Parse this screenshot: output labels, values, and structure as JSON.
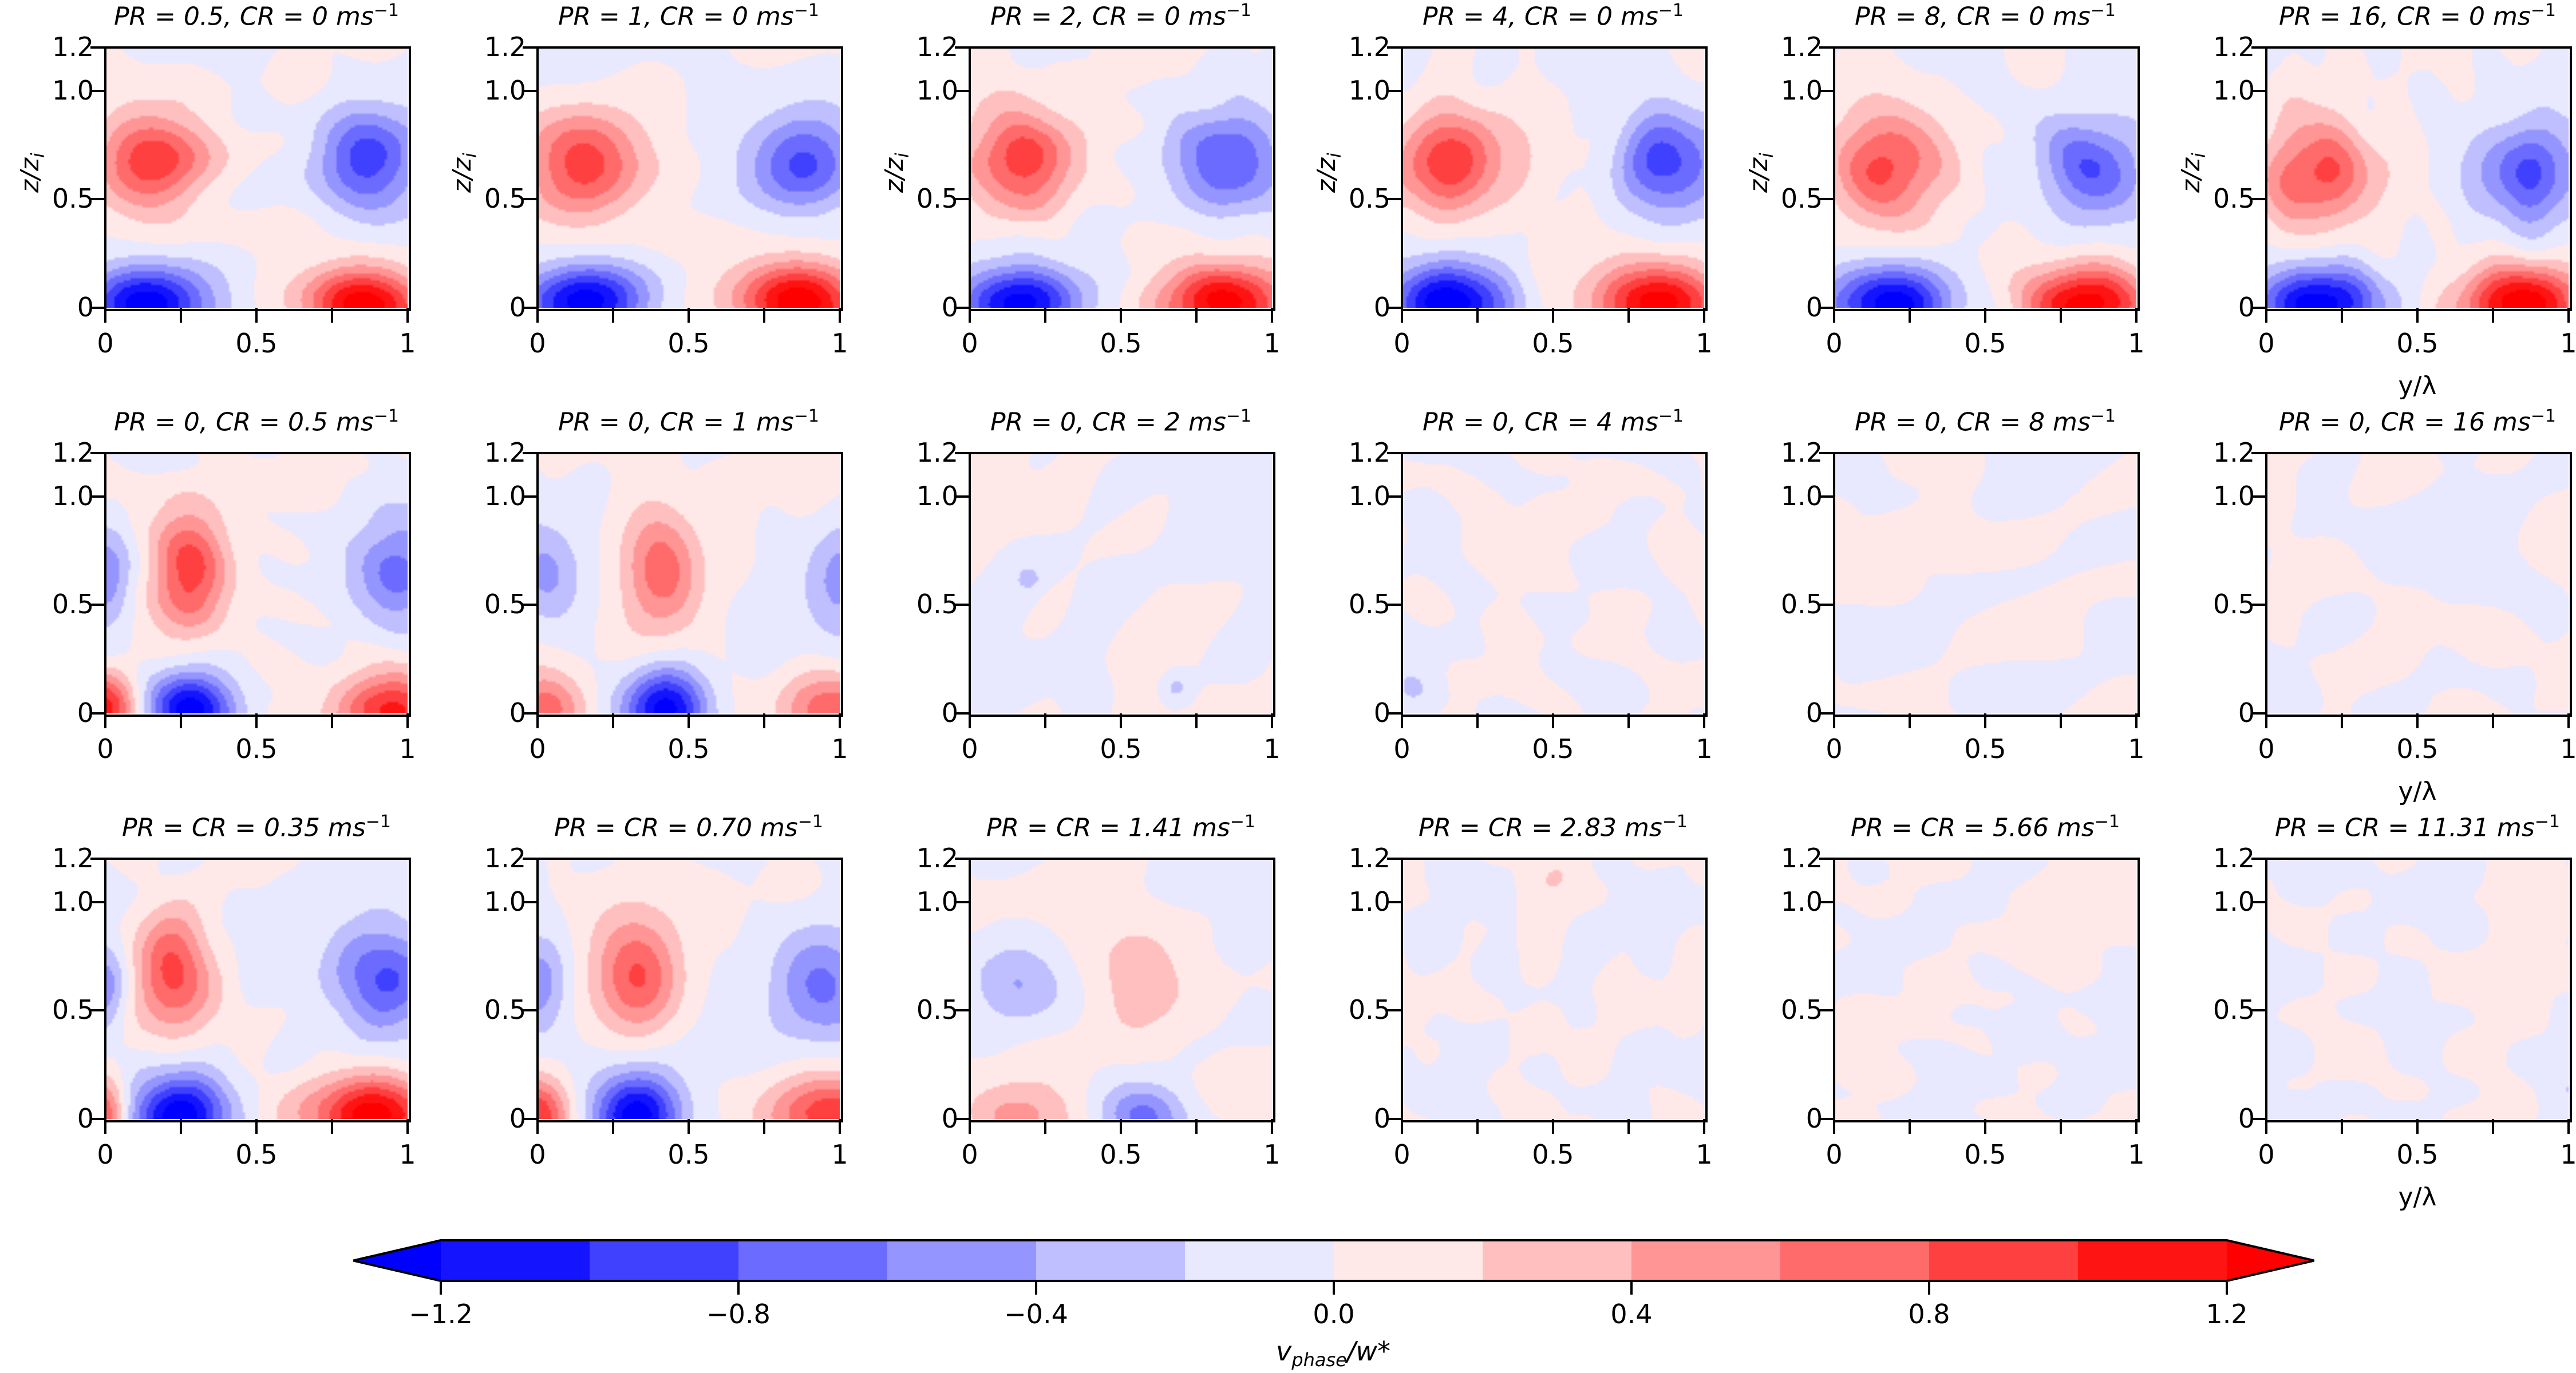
{
  "chart_data": {
    "type": "heatmap",
    "subtype": "filled-contour-grid",
    "rows": 3,
    "cols": 6,
    "xlabel": "y/λ",
    "ylabel": "z/z_i",
    "xlim": [
      0,
      1
    ],
    "ylim": [
      0,
      1.2
    ],
    "xticks": [
      "0",
      "0.5",
      "1"
    ],
    "xminor_ticks": [
      0.25,
      0.75
    ],
    "yticks": [
      "0",
      "0.5",
      "1.0",
      "1.2"
    ],
    "ytick_values": [
      0,
      0.5,
      1.0,
      1.2
    ],
    "colormap": "bwr",
    "colorbar": {
      "label_main": "v",
      "label_sub": "phase",
      "label_tail": "/w*",
      "levels": [
        -1.2,
        -1.0,
        -0.8,
        -0.6,
        -0.4,
        -0.2,
        0.0,
        0.2,
        0.4,
        0.6,
        0.8,
        1.0,
        1.2
      ],
      "ticks": [
        "−1.2",
        "−0.8",
        "−0.4",
        "0.0",
        "0.4",
        "0.8",
        "1.2"
      ],
      "tick_values": [
        -1.2,
        -0.8,
        -0.4,
        0.0,
        0.4,
        0.8,
        1.2
      ],
      "extend": "both",
      "colors": [
        "#0000ff",
        "#1414ff",
        "#4040ff",
        "#6b6bff",
        "#9595ff",
        "#bfbfff",
        "#e8e8ff",
        "#ffe8e8",
        "#ffbfbf",
        "#ff9595",
        "#ff6b6b",
        "#ff4040",
        "#ff1414",
        "#ff0000"
      ],
      "placement": "bottom"
    },
    "panels": [
      {
        "pr": "0.5",
        "cr": "0",
        "title_pre": "PR = 0.5, CR = 0 ms",
        "noise": 0.05,
        "seed": 1,
        "blobs": [
          [
            0.15,
            0.68,
            0.95,
            0.13,
            0.17
          ],
          [
            0.88,
            0.68,
            -0.9,
            0.12,
            0.17
          ],
          [
            0.15,
            0.02,
            -1.35,
            0.14,
            0.12
          ],
          [
            0.85,
            0.02,
            1.35,
            0.14,
            0.12
          ]
        ]
      },
      {
        "pr": "1",
        "cr": "0",
        "title_pre": "PR = 1, CR = 0 ms",
        "noise": 0.05,
        "seed": 2,
        "blobs": [
          [
            0.16,
            0.67,
            0.95,
            0.13,
            0.17
          ],
          [
            0.88,
            0.68,
            -0.85,
            0.12,
            0.17
          ],
          [
            0.16,
            0.02,
            -1.35,
            0.14,
            0.12
          ],
          [
            0.86,
            0.02,
            1.35,
            0.14,
            0.12
          ]
        ]
      },
      {
        "pr": "2",
        "cr": "0",
        "title_pre": "PR = 2, CR = 0 ms",
        "noise": 0.05,
        "seed": 3,
        "blobs": [
          [
            0.18,
            0.67,
            0.9,
            0.13,
            0.17
          ],
          [
            0.85,
            0.67,
            -0.8,
            0.13,
            0.17
          ],
          [
            0.17,
            0.02,
            -1.3,
            0.14,
            0.12
          ],
          [
            0.84,
            0.02,
            1.3,
            0.14,
            0.12
          ]
        ]
      },
      {
        "pr": "4",
        "cr": "0",
        "title_pre": "PR = 4, CR = 0 ms",
        "noise": 0.05,
        "seed": 4,
        "blobs": [
          [
            0.16,
            0.67,
            0.95,
            0.13,
            0.17
          ],
          [
            0.88,
            0.68,
            -0.9,
            0.12,
            0.17
          ],
          [
            0.16,
            0.02,
            -1.35,
            0.14,
            0.12
          ],
          [
            0.86,
            0.02,
            1.35,
            0.14,
            0.12
          ]
        ]
      },
      {
        "pr": "8",
        "cr": "0",
        "title_pre": "PR = 8, CR = 0 ms",
        "noise": 0.05,
        "seed": 5,
        "blobs": [
          [
            0.18,
            0.66,
            0.85,
            0.13,
            0.17
          ],
          [
            0.85,
            0.66,
            -0.8,
            0.13,
            0.17
          ],
          [
            0.18,
            0.02,
            -1.3,
            0.14,
            0.12
          ],
          [
            0.84,
            0.02,
            1.3,
            0.14,
            0.12
          ]
        ]
      },
      {
        "pr": "16",
        "cr": "0",
        "title_pre": "PR = 16, CR = 0 ms",
        "noise": 0.05,
        "seed": 6,
        "blobs": [
          [
            0.18,
            0.62,
            0.85,
            0.13,
            0.17
          ],
          [
            0.86,
            0.62,
            -0.85,
            0.12,
            0.17
          ],
          [
            0.17,
            0.02,
            -1.35,
            0.14,
            0.12
          ],
          [
            0.85,
            0.02,
            1.35,
            0.14,
            0.12
          ]
        ]
      },
      {
        "pr": "0",
        "cr": "0.5",
        "title_pre": "PR = 0, CR = 0.5 ms",
        "noise": 0.05,
        "seed": 7,
        "blobs": [
          [
            0.28,
            0.65,
            0.9,
            0.09,
            0.2
          ],
          [
            0.0,
            0.62,
            -0.55,
            0.06,
            0.16
          ],
          [
            0.97,
            0.65,
            -0.7,
            0.1,
            0.18
          ],
          [
            0.28,
            0.02,
            -1.35,
            0.1,
            0.13
          ],
          [
            0.0,
            0.02,
            1.1,
            0.07,
            0.12
          ],
          [
            0.95,
            0.02,
            1.1,
            0.14,
            0.12
          ]
        ]
      },
      {
        "pr": "0",
        "cr": "1",
        "title_pre": "PR = 0, CR = 1 ms",
        "noise": 0.05,
        "seed": 8,
        "blobs": [
          [
            0.42,
            0.65,
            0.75,
            0.09,
            0.2
          ],
          [
            0.03,
            0.65,
            -0.55,
            0.08,
            0.18
          ],
          [
            1.0,
            0.65,
            -0.5,
            0.08,
            0.18
          ],
          [
            0.42,
            0.02,
            -1.3,
            0.1,
            0.13
          ],
          [
            0.03,
            0.02,
            0.75,
            0.1,
            0.12
          ],
          [
            1.0,
            0.02,
            0.75,
            0.14,
            0.12
          ]
        ]
      },
      {
        "pr": "0",
        "cr": "2",
        "title_pre": "PR = 0, CR = 2 ms",
        "noise": 0.09,
        "seed": 9,
        "blobs": [
          [
            0.68,
            0.12,
            -0.3,
            0.04,
            0.06
          ],
          [
            0.2,
            0.62,
            -0.2,
            0.02,
            0.03
          ],
          [
            0.6,
            0.75,
            0.05,
            0.15,
            0.2
          ]
        ]
      },
      {
        "pr": "0",
        "cr": "4",
        "title_pre": "PR = 0, CR = 4 ms",
        "noise": 0.09,
        "seed": 10,
        "blobs": []
      },
      {
        "pr": "0",
        "cr": "8",
        "title_pre": "PR = 0, CR = 8 ms",
        "noise": 0.09,
        "seed": 11,
        "blobs": []
      },
      {
        "pr": "0",
        "cr": "16",
        "title_pre": "PR = 0, CR = 16 ms",
        "noise": 0.09,
        "seed": 12,
        "blobs": []
      },
      {
        "pr": "0.35",
        "cr": "0.35",
        "title_pre": "PR = CR = 0.35 ms",
        "noise": 0.05,
        "seed": 13,
        "blobs": [
          [
            0.22,
            0.66,
            0.95,
            0.09,
            0.18
          ],
          [
            0.0,
            0.62,
            -0.5,
            0.05,
            0.15
          ],
          [
            0.92,
            0.64,
            -0.85,
            0.12,
            0.17
          ],
          [
            0.24,
            0.02,
            -1.35,
            0.11,
            0.13
          ],
          [
            0.0,
            0.02,
            0.9,
            0.05,
            0.12
          ],
          [
            0.88,
            0.02,
            1.35,
            0.14,
            0.12
          ]
        ]
      },
      {
        "pr": "0.70",
        "cr": "0.70",
        "title_pre": "PR = CR = 0.70 ms",
        "noise": 0.05,
        "seed": 14,
        "blobs": [
          [
            0.33,
            0.66,
            0.85,
            0.1,
            0.19
          ],
          [
            0.0,
            0.63,
            -0.55,
            0.07,
            0.17
          ],
          [
            0.95,
            0.62,
            -0.65,
            0.12,
            0.18
          ],
          [
            0.33,
            0.02,
            -1.35,
            0.1,
            0.13
          ],
          [
            0.0,
            0.02,
            0.95,
            0.07,
            0.12
          ],
          [
            0.98,
            0.02,
            1.0,
            0.15,
            0.12
          ]
        ]
      },
      {
        "pr": "1.41",
        "cr": "1.41",
        "title_pre": "PR = CR = 1.41 ms",
        "noise": 0.07,
        "seed": 15,
        "blobs": [
          [
            0.55,
            0.65,
            0.35,
            0.12,
            0.18
          ],
          [
            0.15,
            0.62,
            -0.35,
            0.1,
            0.12
          ],
          [
            0.58,
            0.02,
            -0.7,
            0.1,
            0.1
          ],
          [
            0.15,
            0.02,
            0.45,
            0.13,
            0.1
          ]
        ]
      },
      {
        "pr": "2.83",
        "cr": "2.83",
        "title_pre": "PR = CR = 2.83 ms",
        "noise": 0.08,
        "seed": 16,
        "blobs": []
      },
      {
        "pr": "5.66",
        "cr": "5.66",
        "title_pre": "PR = CR = 5.66 ms",
        "noise": 0.08,
        "seed": 17,
        "blobs": []
      },
      {
        "pr": "11.31",
        "cr": "11.31",
        "title_pre": "PR = CR = 11.31 ms",
        "noise": 0.08,
        "seed": 18,
        "blobs": []
      }
    ],
    "title_superscript": "−1",
    "blob_format": "[y_center (y/λ), z_center (z/z_i), amplitude (v_phase/w*), sigma_y, sigma_z]"
  }
}
